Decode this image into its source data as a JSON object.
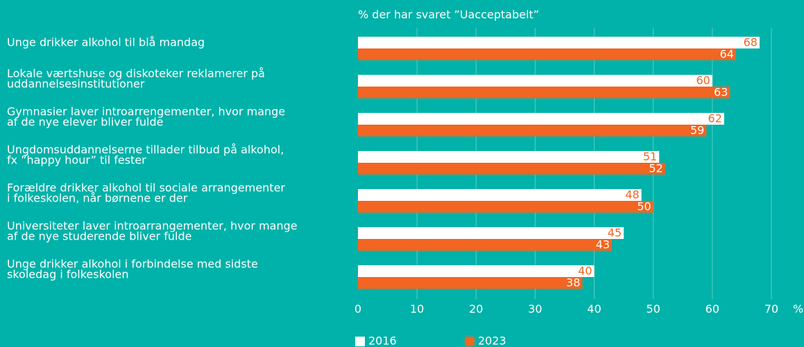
{
  "chart_data": {
    "type": "bar",
    "orientation": "horizontal",
    "title": "% der har svaret ”Uacceptabelt”",
    "xlabel": "%",
    "categories": [
      [
        "Unge drikker alkohol til blå mandag"
      ],
      [
        "Lokale værtshuse og diskoteker reklamerer på",
        "uddannelsesinstitutioner"
      ],
      [
        "Gymnasier laver introarrengementer, hvor mange",
        "af de nye elever bliver fulde"
      ],
      [
        "Ungdomsuddannelserne tillader tilbud på alkohol,",
        "fx ”happy hour” til fester"
      ],
      [
        "Forældre drikker alkohol til sociale arrangementer",
        "i folkeskolen, når børnene er der"
      ],
      [
        "Universiteter laver introarrangementer, hvor mange",
        "af de nye studerende bliver fulde"
      ],
      [
        "Unge drikker alkohol i forbindelse med sidste",
        "skoledag i folkeskolen"
      ]
    ],
    "series": [
      {
        "name": "2016",
        "color": "#ffffff",
        "label_color": "#f26522",
        "values": [
          68,
          60,
          62,
          51,
          48,
          45,
          40
        ]
      },
      {
        "name": "2023",
        "color": "#f26522",
        "label_color": "#ffffff",
        "values": [
          64,
          63,
          59,
          52,
          50,
          43,
          38
        ]
      }
    ],
    "xlim": [
      0,
      70
    ],
    "xticks": [
      0,
      10,
      20,
      30,
      40,
      50,
      60,
      70
    ],
    "grid": true
  }
}
